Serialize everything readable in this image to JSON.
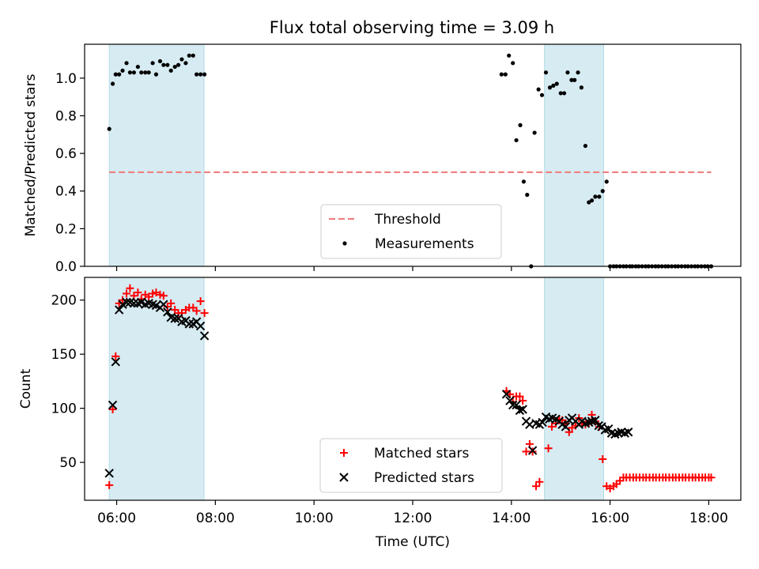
{
  "title": "Flux total observing time = 3.09 h",
  "colors": {
    "band": "#add8e6",
    "threshold": "#f08080",
    "measurements": "#000000",
    "matched": "#ff0000",
    "predicted": "#000000"
  },
  "chart_data": [
    {
      "type": "scatter",
      "panel": "top",
      "ylabel": "Matched/Predicted stars",
      "xlim": [
        5.35,
        18.65
      ],
      "ylim": [
        0,
        1.18
      ],
      "yticks": [
        0.0,
        0.2,
        0.4,
        0.6,
        0.8,
        1.0
      ],
      "ytick_labels": [
        "0.0",
        "0.2",
        "0.4",
        "0.6",
        "0.8",
        "1.0"
      ],
      "shaded_intervals": [
        [
          5.85,
          7.77
        ],
        [
          14.67,
          15.87
        ]
      ],
      "threshold": {
        "name": "Threshold",
        "value": 0.5,
        "x_range": [
          5.85,
          18.05
        ],
        "style": "dashed"
      },
      "legend": {
        "placement": "bottom-center",
        "entries": [
          "Threshold",
          "Measurements"
        ]
      },
      "series": [
        {
          "name": "Measurements",
          "marker": "dot",
          "x": [
            5.85,
            5.92,
            5.98,
            6.05,
            6.12,
            6.2,
            6.27,
            6.35,
            6.43,
            6.5,
            6.58,
            6.65,
            6.73,
            6.8,
            6.88,
            6.95,
            7.03,
            7.1,
            7.18,
            7.25,
            7.32,
            7.4,
            7.47,
            7.55,
            7.62,
            7.7,
            7.78,
            13.8,
            13.88,
            13.95,
            14.03,
            14.1,
            14.18,
            14.25,
            14.32,
            14.4,
            14.47,
            14.55,
            14.62,
            14.7,
            14.78,
            14.85,
            14.92,
            15.0,
            15.07,
            15.14,
            15.22,
            15.28,
            15.35,
            15.42,
            15.5,
            15.57,
            15.63,
            15.7,
            15.78,
            15.85,
            15.93,
            16.0,
            16.07,
            16.13,
            16.2,
            16.27,
            16.33,
            16.4,
            16.45,
            16.52,
            16.58,
            16.65,
            16.72,
            16.78,
            16.85,
            16.92,
            16.98,
            17.05,
            17.12,
            17.18,
            17.25,
            17.32,
            17.38,
            17.45,
            17.52,
            17.58,
            17.65,
            17.72,
            17.78,
            17.85,
            17.92,
            17.98,
            18.05
          ],
          "y": [
            0.73,
            0.97,
            1.02,
            1.02,
            1.04,
            1.08,
            1.03,
            1.03,
            1.06,
            1.03,
            1.03,
            1.03,
            1.08,
            1.02,
            1.09,
            1.07,
            1.07,
            1.04,
            1.06,
            1.07,
            1.1,
            1.08,
            1.12,
            1.12,
            1.02,
            1.02,
            1.02,
            1.02,
            1.02,
            1.12,
            1.08,
            0.67,
            0.75,
            0.45,
            0.38,
            0.0,
            0.71,
            0.94,
            0.91,
            1.03,
            0.95,
            0.96,
            0.97,
            0.92,
            0.92,
            1.03,
            0.99,
            0.99,
            1.03,
            0.95,
            0.64,
            0.34,
            0.35,
            0.37,
            0.37,
            0.4,
            0.45,
            0.0,
            0.0,
            0.0,
            0.0,
            0.0,
            0.0,
            0.0,
            0.0,
            0.0,
            0.0,
            0.0,
            0.0,
            0.0,
            0.0,
            0.0,
            0.0,
            0.0,
            0.0,
            0.0,
            0.0,
            0.0,
            0.0,
            0.0,
            0.0,
            0.0,
            0.0,
            0.0,
            0.0,
            0.0,
            0.0,
            0.0,
            0.0
          ]
        }
      ]
    },
    {
      "type": "scatter",
      "panel": "bottom",
      "xlabel": "Time (UTC)",
      "ylabel": "Count",
      "xlim": [
        5.35,
        18.65
      ],
      "ylim": [
        15,
        221
      ],
      "xticks": [
        6,
        8,
        10,
        12,
        14,
        16,
        18
      ],
      "xtick_labels": [
        "06:00",
        "08:00",
        "10:00",
        "12:00",
        "14:00",
        "16:00",
        "18:00"
      ],
      "yticks": [
        50,
        100,
        150,
        200
      ],
      "ytick_labels": [
        "50",
        "100",
        "150",
        "200"
      ],
      "shaded_intervals": [
        [
          5.85,
          7.77
        ],
        [
          14.67,
          15.87
        ]
      ],
      "legend": {
        "placement": "bottom-center",
        "entries": [
          "Matched stars",
          "Predicted stars"
        ]
      },
      "series": [
        {
          "name": "Matched stars",
          "marker": "plus",
          "x": [
            5.85,
            5.92,
            5.98,
            6.05,
            6.12,
            6.2,
            6.27,
            6.35,
            6.43,
            6.5,
            6.58,
            6.65,
            6.73,
            6.8,
            6.88,
            6.95,
            7.03,
            7.1,
            7.18,
            7.25,
            7.32,
            7.4,
            7.47,
            7.55,
            7.62,
            7.7,
            7.78,
            13.9,
            13.97,
            14.03,
            14.1,
            14.17,
            14.23,
            14.3,
            14.37,
            14.43,
            14.5,
            14.57,
            14.75,
            14.82,
            14.9,
            14.97,
            15.03,
            15.1,
            15.17,
            15.23,
            15.3,
            15.37,
            15.43,
            15.5,
            15.57,
            15.63,
            15.7,
            15.78,
            15.85,
            15.93,
            16.0,
            16.07,
            16.13,
            16.2,
            16.27,
            16.33,
            16.4,
            16.47,
            16.53,
            16.6,
            16.67,
            16.73,
            16.8,
            16.87,
            16.93,
            17.0,
            17.07,
            17.13,
            17.2,
            17.27,
            17.33,
            17.4,
            17.47,
            17.53,
            17.6,
            17.67,
            17.73,
            17.8,
            17.87,
            17.93,
            18.0,
            18.05
          ],
          "y": [
            29,
            99,
            148,
            197,
            200,
            206,
            211,
            204,
            207,
            201,
            205,
            203,
            206,
            207,
            205,
            204,
            194,
            197,
            191,
            188,
            188,
            191,
            193,
            193,
            190,
            199,
            188,
            116,
            113,
            106,
            111,
            111,
            107,
            60,
            67,
            60,
            28,
            32,
            63,
            83,
            86,
            90,
            89,
            86,
            78,
            82,
            84,
            91,
            86,
            85,
            86,
            94,
            88,
            83,
            53,
            28,
            26,
            28,
            30,
            33,
            36,
            36,
            36,
            36,
            36,
            36,
            36,
            36,
            36,
            36,
            36,
            36,
            36,
            36,
            36,
            36,
            36,
            36,
            36,
            36,
            36,
            36,
            36,
            36,
            36,
            36,
            36,
            36
          ]
        },
        {
          "name": "Predicted stars",
          "marker": "x",
          "x": [
            5.85,
            5.92,
            5.98,
            6.05,
            6.12,
            6.2,
            6.27,
            6.35,
            6.43,
            6.5,
            6.58,
            6.65,
            6.73,
            6.8,
            6.88,
            6.95,
            7.03,
            7.1,
            7.18,
            7.25,
            7.32,
            7.4,
            7.47,
            7.55,
            7.62,
            7.7,
            7.78,
            13.9,
            13.97,
            14.03,
            14.1,
            14.17,
            14.23,
            14.3,
            14.37,
            14.43,
            14.5,
            14.57,
            14.63,
            14.7,
            14.77,
            14.83,
            14.9,
            14.97,
            15.03,
            15.1,
            15.17,
            15.23,
            15.3,
            15.37,
            15.43,
            15.5,
            15.57,
            15.63,
            15.7,
            15.77,
            15.83,
            15.9,
            15.97,
            16.03,
            16.1,
            16.17,
            16.23,
            16.3,
            16.37
          ],
          "y": [
            40,
            103,
            143,
            191,
            196,
            198,
            198,
            197,
            197,
            198,
            196,
            197,
            196,
            195,
            193,
            196,
            189,
            184,
            183,
            183,
            180,
            181,
            178,
            178,
            180,
            176,
            167,
            113,
            107,
            103,
            103,
            98,
            99,
            88,
            85,
            61,
            86,
            85,
            87,
            92,
            90,
            91,
            90,
            88,
            85,
            83,
            89,
            91,
            88,
            85,
            88,
            86,
            87,
            88,
            89,
            84,
            83,
            80,
            81,
            77,
            76,
            77,
            78,
            77,
            78
          ]
        }
      ]
    }
  ]
}
